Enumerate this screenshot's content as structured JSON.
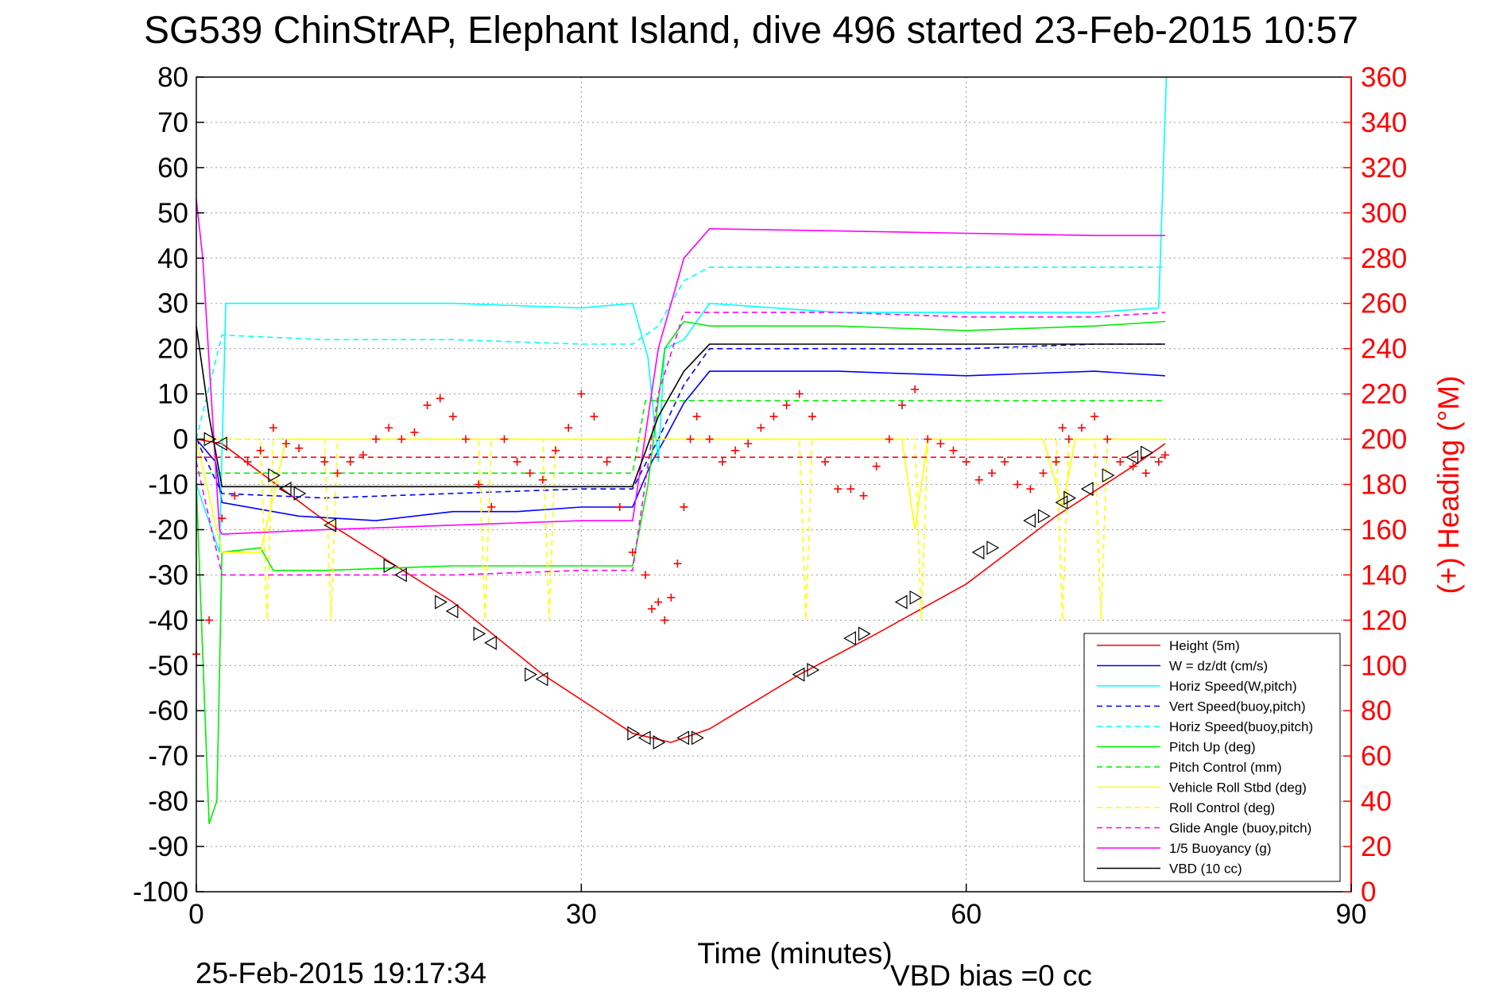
{
  "title": "SG539 ChinStrAP, Elephant Island, dive 496 started 23-Feb-2015 10:57",
  "footer": {
    "timestamp": "25-Feb-2015 19:17:34",
    "vbd_bias": "VBD bias =0 cc"
  },
  "colors": {
    "height": "#ff0000",
    "w": "#0000ff",
    "hspeed": "#00ffff",
    "pitch": "#00ee00",
    "roll": "#ffff00",
    "glide": "#ff00ff",
    "buoy": "#ff00ff",
    "vbd": "#000000",
    "heading": "#ff0000"
  },
  "chart_data": {
    "type": "line",
    "xlabel": "Time (minutes)",
    "ylabel": "",
    "y2label": "(+) Heading (°M)",
    "xlim": [
      0,
      90
    ],
    "ylim": [
      -100,
      80
    ],
    "y2lim": [
      0,
      360
    ],
    "xticks": [
      0,
      30,
      60,
      90
    ],
    "yticks": [
      80,
      70,
      60,
      50,
      40,
      30,
      20,
      10,
      0,
      -10,
      -20,
      -30,
      -40,
      -50,
      -60,
      -70,
      -80,
      -90,
      -100
    ],
    "y2ticks": [
      360,
      340,
      320,
      300,
      280,
      260,
      240,
      220,
      200,
      180,
      160,
      140,
      120,
      100,
      80,
      60,
      40,
      20,
      0
    ],
    "grid": true,
    "legend_position": "lower-right",
    "series": [
      {
        "name": "Height (5m)",
        "color": "#ff0000",
        "dash": "solid",
        "axis": "left",
        "points": [
          [
            0,
            0
          ],
          [
            2,
            -1
          ],
          [
            10,
            -18
          ],
          [
            20,
            -36
          ],
          [
            27,
            -52
          ],
          [
            34,
            -65
          ],
          [
            37,
            -67
          ],
          [
            40,
            -64
          ],
          [
            47,
            -52
          ],
          [
            53,
            -43
          ],
          [
            60,
            -32
          ],
          [
            67,
            -17
          ],
          [
            73,
            -6
          ],
          [
            75.5,
            -1
          ]
        ]
      },
      {
        "name": "W = dz/dt (cm/s)",
        "color": "#0000ff",
        "dash": "solid",
        "axis": "left",
        "points": [
          [
            0,
            0
          ],
          [
            1.5,
            -5
          ],
          [
            2,
            -14
          ],
          [
            8,
            -17
          ],
          [
            14,
            -18
          ],
          [
            20,
            -16
          ],
          [
            25,
            -16
          ],
          [
            30,
            -15
          ],
          [
            34,
            -15
          ],
          [
            35.5,
            -5
          ],
          [
            36.5,
            0
          ],
          [
            38,
            8
          ],
          [
            40,
            15
          ],
          [
            50,
            15
          ],
          [
            60,
            14
          ],
          [
            70,
            15
          ],
          [
            75.5,
            14
          ]
        ]
      },
      {
        "name": "Horiz Speed(W,pitch)",
        "color": "#00ffff",
        "dash": "solid",
        "axis": "left",
        "points": [
          [
            0,
            -10
          ],
          [
            1.8,
            -25
          ],
          [
            2.3,
            30
          ],
          [
            10,
            30
          ],
          [
            20,
            30
          ],
          [
            30,
            29
          ],
          [
            34,
            30
          ],
          [
            35.2,
            18
          ],
          [
            36,
            -5
          ],
          [
            36.5,
            20
          ],
          [
            38,
            22
          ],
          [
            40,
            30
          ],
          [
            50,
            28
          ],
          [
            60,
            28
          ],
          [
            70,
            28
          ],
          [
            75,
            29
          ],
          [
            75.6,
            80
          ]
        ]
      },
      {
        "name": "Vert Speed(buoy,pitch)",
        "color": "#0000ff",
        "dash": "dashed",
        "axis": "left",
        "points": [
          [
            0,
            0
          ],
          [
            2,
            -12
          ],
          [
            10,
            -13
          ],
          [
            20,
            -12
          ],
          [
            30,
            -11
          ],
          [
            34,
            -11
          ],
          [
            36,
            0
          ],
          [
            38,
            12
          ],
          [
            40,
            20
          ],
          [
            50,
            20
          ],
          [
            60,
            20
          ],
          [
            70,
            21
          ],
          [
            75.5,
            21
          ]
        ]
      },
      {
        "name": "Horiz Speed(buoy,pitch)",
        "color": "#00ffff",
        "dash": "dashed",
        "axis": "left",
        "points": [
          [
            0,
            0
          ],
          [
            2,
            23
          ],
          [
            10,
            22
          ],
          [
            20,
            22
          ],
          [
            30,
            21
          ],
          [
            34,
            21
          ],
          [
            36,
            25
          ],
          [
            38,
            35
          ],
          [
            40,
            38
          ],
          [
            50,
            38
          ],
          [
            60,
            38
          ],
          [
            70,
            38
          ],
          [
            75.5,
            38
          ]
        ]
      },
      {
        "name": "Pitch Up (deg)",
        "color": "#00ee00",
        "dash": "solid",
        "axis": "left",
        "points": [
          [
            0,
            -10
          ],
          [
            1,
            -85
          ],
          [
            1.6,
            -80
          ],
          [
            2,
            -25
          ],
          [
            5,
            -24
          ],
          [
            6,
            -29
          ],
          [
            10,
            -29
          ],
          [
            20,
            -28
          ],
          [
            30,
            -28
          ],
          [
            34,
            -28
          ],
          [
            35.2,
            -10
          ],
          [
            36.5,
            20
          ],
          [
            38,
            26
          ],
          [
            40,
            25
          ],
          [
            50,
            25
          ],
          [
            60,
            24
          ],
          [
            70,
            25
          ],
          [
            75.5,
            26
          ]
        ]
      },
      {
        "name": "Pitch Control (mm)",
        "color": "#00ee00",
        "dash": "dashed",
        "axis": "left",
        "points": [
          [
            0,
            -7.5
          ],
          [
            34,
            -7.5
          ],
          [
            35,
            8.5
          ],
          [
            75.5,
            8.5
          ]
        ]
      },
      {
        "name": "Vehicle Roll Stbd (deg)",
        "color": "#ffff00",
        "dash": "solid",
        "axis": "left",
        "points": [
          [
            0,
            0
          ],
          [
            2,
            -25
          ],
          [
            5,
            -25
          ],
          [
            7,
            0
          ],
          [
            20,
            0
          ],
          [
            30,
            0
          ],
          [
            34,
            0
          ],
          [
            40,
            0
          ],
          [
            50,
            0
          ],
          [
            55,
            0
          ],
          [
            56,
            -20
          ],
          [
            57,
            0
          ],
          [
            66,
            0
          ],
          [
            67.5,
            -15
          ],
          [
            68.5,
            0
          ],
          [
            73,
            0
          ],
          [
            75.5,
            0
          ]
        ]
      },
      {
        "name": "Roll Control (deg)",
        "color": "#ffff00",
        "dash": "dashed",
        "axis": "left",
        "points": [
          [
            0,
            0
          ],
          [
            5,
            0
          ],
          [
            5.5,
            -40
          ],
          [
            6,
            0
          ],
          [
            10,
            0
          ],
          [
            10.5,
            -40
          ],
          [
            11,
            0
          ],
          [
            20,
            0
          ],
          [
            22,
            0
          ],
          [
            22.5,
            -40
          ],
          [
            23,
            0
          ],
          [
            27,
            0
          ],
          [
            27.5,
            -40
          ],
          [
            28,
            0
          ],
          [
            34,
            0
          ],
          [
            40,
            0
          ],
          [
            47,
            0
          ],
          [
            47.5,
            -40
          ],
          [
            48,
            0
          ],
          [
            56,
            0
          ],
          [
            56.5,
            -40
          ],
          [
            57,
            0
          ],
          [
            67,
            0
          ],
          [
            67.5,
            -40
          ],
          [
            68,
            0
          ],
          [
            70,
            0
          ],
          [
            70.5,
            -40
          ],
          [
            71,
            0
          ],
          [
            75.5,
            0
          ]
        ]
      },
      {
        "name": "Glide Angle (buoy,pitch)",
        "color": "#ff00ff",
        "dash": "dashed",
        "axis": "left",
        "points": [
          [
            0,
            -5
          ],
          [
            2,
            -30
          ],
          [
            10,
            -30
          ],
          [
            20,
            -30
          ],
          [
            30,
            -29
          ],
          [
            34,
            -29
          ],
          [
            36,
            10
          ],
          [
            38,
            28
          ],
          [
            40,
            28
          ],
          [
            50,
            28
          ],
          [
            60,
            27
          ],
          [
            70,
            27
          ],
          [
            75.5,
            28
          ]
        ]
      },
      {
        "name": "1/5 Buoyancy (g)",
        "color": "#ff00ff",
        "dash": "solid",
        "axis": "left",
        "points": [
          [
            0,
            53
          ],
          [
            0.5,
            40
          ],
          [
            1.8,
            -20
          ],
          [
            2,
            -21
          ],
          [
            10,
            -20
          ],
          [
            20,
            -19
          ],
          [
            30,
            -18
          ],
          [
            34,
            -18
          ],
          [
            36,
            20
          ],
          [
            38,
            40
          ],
          [
            40,
            46.5
          ],
          [
            50,
            46
          ],
          [
            60,
            45.5
          ],
          [
            70,
            45
          ],
          [
            75.5,
            45
          ]
        ]
      },
      {
        "name": "VBD (10 cc)",
        "color": "#000000",
        "dash": "solid",
        "axis": "left",
        "points": [
          [
            0,
            25
          ],
          [
            1,
            5
          ],
          [
            2,
            -10.5
          ],
          [
            10,
            -10.5
          ],
          [
            20,
            -10.5
          ],
          [
            30,
            -10.5
          ],
          [
            34,
            -10.5
          ],
          [
            36,
            5
          ],
          [
            38,
            15
          ],
          [
            40,
            21
          ],
          [
            50,
            21
          ],
          [
            60,
            21
          ],
          [
            70,
            21
          ],
          [
            75.5,
            21
          ]
        ]
      },
      {
        "name": "",
        "color": "#ff0000",
        "dash": "dashed",
        "axis": "left",
        "points": [
          [
            0,
            -4
          ],
          [
            75.5,
            -4
          ]
        ]
      }
    ],
    "heading": {
      "color": "#ff0000",
      "axis": "right",
      "marker": "+",
      "points": [
        [
          0,
          105
        ],
        [
          1,
          120
        ],
        [
          2,
          165
        ],
        [
          3,
          175
        ],
        [
          4,
          190
        ],
        [
          5,
          195
        ],
        [
          6,
          205
        ],
        [
          7,
          198
        ],
        [
          8,
          196
        ],
        [
          10,
          190
        ],
        [
          11,
          185
        ],
        [
          12,
          190
        ],
        [
          13,
          193
        ],
        [
          14,
          200
        ],
        [
          15,
          205
        ],
        [
          16,
          200
        ],
        [
          17,
          203
        ],
        [
          18,
          215
        ],
        [
          19,
          218
        ],
        [
          20,
          210
        ],
        [
          21,
          200
        ],
        [
          22,
          180
        ],
        [
          23,
          170
        ],
        [
          24,
          200
        ],
        [
          25,
          190
        ],
        [
          26,
          185
        ],
        [
          27,
          182
        ],
        [
          28,
          195
        ],
        [
          29,
          205
        ],
        [
          30,
          220
        ],
        [
          31,
          210
        ],
        [
          32,
          190
        ],
        [
          33,
          170
        ],
        [
          34,
          150
        ],
        [
          35,
          140
        ],
        [
          35.5,
          125
        ],
        [
          36,
          128
        ],
        [
          36.5,
          120
        ],
        [
          37,
          130
        ],
        [
          37.5,
          145
        ],
        [
          38,
          170
        ],
        [
          38.5,
          200
        ],
        [
          39,
          210
        ],
        [
          40,
          200
        ],
        [
          41,
          190
        ],
        [
          42,
          195
        ],
        [
          43,
          198
        ],
        [
          44,
          205
        ],
        [
          45,
          210
        ],
        [
          46,
          215
        ],
        [
          47,
          220
        ],
        [
          48,
          210
        ],
        [
          49,
          190
        ],
        [
          50,
          178
        ],
        [
          51,
          178
        ],
        [
          52,
          175
        ],
        [
          53,
          188
        ],
        [
          54,
          200
        ],
        [
          55,
          215
        ],
        [
          56,
          222
        ],
        [
          57,
          200
        ],
        [
          58,
          198
        ],
        [
          59,
          195
        ],
        [
          60,
          190
        ],
        [
          61,
          182
        ],
        [
          62,
          185
        ],
        [
          63,
          190
        ],
        [
          64,
          180
        ],
        [
          65,
          178
        ],
        [
          66,
          185
        ],
        [
          67,
          190
        ],
        [
          67.5,
          205
        ],
        [
          68,
          200
        ],
        [
          69,
          205
        ],
        [
          70,
          210
        ],
        [
          71,
          200
        ],
        [
          72,
          190
        ],
        [
          73,
          188
        ],
        [
          74,
          185
        ],
        [
          75,
          190
        ],
        [
          75.5,
          193
        ]
      ]
    },
    "markers": {
      "symbol": "triangle",
      "points": [
        [
          1,
          0
        ],
        [
          2,
          -1
        ],
        [
          6,
          -8
        ],
        [
          7,
          -11
        ],
        [
          8,
          -12
        ],
        [
          10.5,
          -19
        ],
        [
          15,
          -28
        ],
        [
          16,
          -30
        ],
        [
          19,
          -36
        ],
        [
          20,
          -38
        ],
        [
          22,
          -43
        ],
        [
          23,
          -45
        ],
        [
          26,
          -52
        ],
        [
          27,
          -53
        ],
        [
          34,
          -65
        ],
        [
          35,
          -66
        ],
        [
          36,
          -67
        ],
        [
          38,
          -66
        ],
        [
          39,
          -66
        ],
        [
          47,
          -52
        ],
        [
          48,
          -51
        ],
        [
          51,
          -44
        ],
        [
          52,
          -43
        ],
        [
          55,
          -36
        ],
        [
          56,
          -35
        ],
        [
          61,
          -25
        ],
        [
          62,
          -24
        ],
        [
          65,
          -18
        ],
        [
          66,
          -17
        ],
        [
          67.5,
          -14
        ],
        [
          68,
          -13
        ],
        [
          69.5,
          -11
        ],
        [
          71,
          -8
        ],
        [
          73,
          -4
        ],
        [
          74,
          -3
        ]
      ]
    }
  }
}
